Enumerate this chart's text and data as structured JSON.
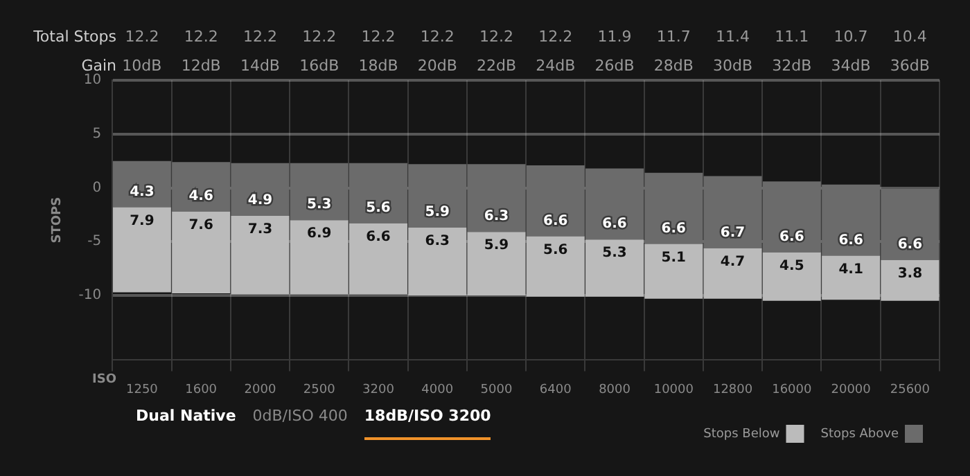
{
  "chart_data": {
    "type": "bar",
    "xlabel": "ISO",
    "ylabel": "STOPS",
    "categories": [
      "1250",
      "1600",
      "2000",
      "2500",
      "3200",
      "4000",
      "5000",
      "6400",
      "8000",
      "10000",
      "12800",
      "16000",
      "20000",
      "25600"
    ],
    "series": [
      {
        "name": "Stops Below",
        "color": "#bbbbbb",
        "base": [
          -9.7,
          -9.8,
          -9.9,
          -9.9,
          -9.9,
          -10.0,
          -10.0,
          -10.1,
          -10.1,
          -10.3,
          -10.3,
          -10.5,
          -10.4,
          -10.5
        ],
        "values": [
          7.9,
          7.6,
          7.3,
          6.9,
          6.6,
          6.3,
          5.9,
          5.6,
          5.3,
          5.1,
          4.7,
          4.5,
          4.1,
          3.8
        ]
      },
      {
        "name": "Stops Above",
        "color": "#6b6b6b",
        "base": [
          -1.8,
          -2.2,
          -2.6,
          -3.0,
          -3.3,
          -3.7,
          -4.1,
          -4.5,
          -4.8,
          -5.2,
          -5.6,
          -6.0,
          -6.3,
          -6.7
        ],
        "values": [
          4.3,
          4.6,
          4.9,
          5.3,
          5.6,
          5.9,
          6.3,
          6.6,
          6.6,
          6.6,
          6.7,
          6.6,
          6.6,
          6.6
        ]
      }
    ],
    "ylim": [
      -16,
      10
    ],
    "yticks": [
      -10,
      -5,
      0,
      5,
      10
    ],
    "grid": true,
    "data_labels": true,
    "legend": "bottom right",
    "annotations": [
      "Total Stops",
      "12.2",
      "12.2",
      "12.2",
      "12.2",
      "12.2",
      "12.2",
      "12.2",
      "12.2",
      "11.9",
      "11.7",
      "11.4",
      "11.1",
      "10.7",
      "10.4",
      "Gain",
      "10dB",
      "12dB",
      "14dB",
      "16dB",
      "18dB",
      "20dB",
      "22dB",
      "24dB",
      "26dB",
      "28dB",
      "30dB",
      "32dB",
      "34dB",
      "36dB",
      "Dual Native",
      "0dB/ISO 400",
      "18dB/ISO 3200"
    ]
  }
}
